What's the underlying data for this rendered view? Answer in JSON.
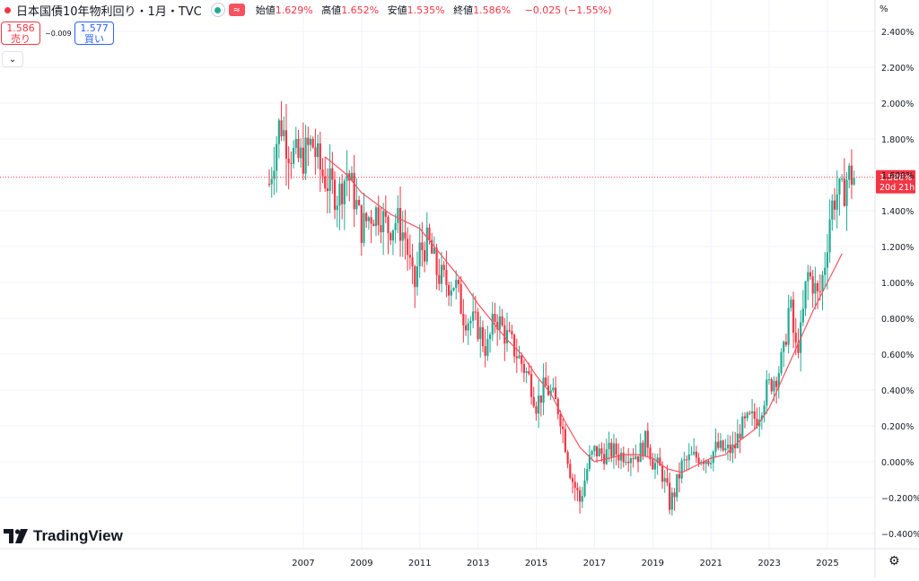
{
  "header": {
    "symbol": "日本国債10年物利回り・1月・TVC",
    "approx_icon": "≈",
    "open_label": "始値",
    "open": "1.629%",
    "high_label": "高値",
    "high": "1.652%",
    "low_label": "安値",
    "low": "1.535%",
    "close_label": "終値",
    "close": "1.586%",
    "change": "−0.025 (−1.55%)"
  },
  "trade": {
    "sell_price": "1.586",
    "sell_label": "売り",
    "spread": "−0.009",
    "buy_price": "1.577",
    "buy_label": "買い"
  },
  "axis": {
    "unit_label": "%",
    "price_tag": "1.586%",
    "countdown": "20d 21h"
  },
  "brand": {
    "name": "TradingView"
  },
  "colors": {
    "up": "#22ab94",
    "down": "#f23645",
    "ma": "#f7525f",
    "grid": "#f0f3fa"
  },
  "chart_data": {
    "type": "candlestick",
    "interval": "1M",
    "ylabel_unit": "%",
    "ylim": [
      -0.45,
      2.45
    ],
    "y_ticks": [
      "2.400%",
      "2.200%",
      "2.000%",
      "1.800%",
      "1.600%",
      "1.400%",
      "1.200%",
      "1.000%",
      "0.800%",
      "0.600%",
      "0.400%",
      "0.200%",
      "0.000%",
      "−0.200%",
      "−0.400%"
    ],
    "y_tick_values": [
      2.4,
      2.2,
      2.0,
      1.8,
      1.6,
      1.4,
      1.2,
      1.0,
      0.8,
      0.6,
      0.4,
      0.2,
      0.0,
      -0.2,
      -0.4
    ],
    "x_ticks": [
      "2007",
      "2009",
      "2011",
      "2013",
      "2015",
      "2017",
      "2019",
      "2021",
      "2023",
      "2025"
    ],
    "x_tick_years": [
      2007,
      2009,
      2011,
      2013,
      2015,
      2017,
      2019,
      2021,
      2023,
      2025
    ],
    "x_range": [
      2005.8,
      2025.95
    ],
    "last_price": 1.586,
    "moving_average": [
      [
        2007.75,
        1.7
      ],
      [
        2008.5,
        1.6
      ],
      [
        2009.0,
        1.5
      ],
      [
        2010.0,
        1.38
      ],
      [
        2011.0,
        1.3
      ],
      [
        2012.0,
        1.1
      ],
      [
        2012.5,
        1.0
      ],
      [
        2013.0,
        0.88
      ],
      [
        2014.0,
        0.68
      ],
      [
        2014.5,
        0.6
      ],
      [
        2015.0,
        0.48
      ],
      [
        2015.5,
        0.38
      ],
      [
        2016.0,
        0.22
      ],
      [
        2016.5,
        0.08
      ],
      [
        2017.0,
        0.0
      ],
      [
        2017.5,
        0.02
      ],
      [
        2018.0,
        0.04
      ],
      [
        2018.5,
        0.04
      ],
      [
        2019.0,
        0.02
      ],
      [
        2019.5,
        -0.04
      ],
      [
        2020.0,
        -0.06
      ],
      [
        2020.5,
        -0.02
      ],
      [
        2021.0,
        0.02
      ],
      [
        2021.5,
        0.04
      ],
      [
        2022.0,
        0.12
      ],
      [
        2022.5,
        0.18
      ],
      [
        2023.0,
        0.3
      ],
      [
        2023.5,
        0.48
      ],
      [
        2024.0,
        0.66
      ],
      [
        2024.5,
        0.84
      ],
      [
        2025.0,
        1.0
      ],
      [
        2025.5,
        1.16
      ]
    ],
    "close_path": [
      [
        2005.83,
        1.55
      ],
      [
        2006.0,
        1.72
      ],
      [
        2006.2,
        1.9
      ],
      [
        2006.5,
        1.75
      ],
      [
        2006.8,
        1.68
      ],
      [
        2007.0,
        1.7
      ],
      [
        2007.3,
        1.78
      ],
      [
        2007.6,
        1.62
      ],
      [
        2007.9,
        1.54
      ],
      [
        2008.2,
        1.48
      ],
      [
        2008.5,
        1.62
      ],
      [
        2008.8,
        1.45
      ],
      [
        2009.0,
        1.3
      ],
      [
        2009.3,
        1.38
      ],
      [
        2009.6,
        1.4
      ],
      [
        2009.9,
        1.3
      ],
      [
        2010.2,
        1.35
      ],
      [
        2010.5,
        1.25
      ],
      [
        2010.8,
        0.95
      ],
      [
        2011.0,
        1.18
      ],
      [
        2011.3,
        1.22
      ],
      [
        2011.6,
        1.05
      ],
      [
        2011.9,
        1.0
      ],
      [
        2012.2,
        1.0
      ],
      [
        2012.5,
        0.82
      ],
      [
        2012.8,
        0.78
      ],
      [
        2013.0,
        0.75
      ],
      [
        2013.3,
        0.62
      ],
      [
        2013.6,
        0.82
      ],
      [
        2013.9,
        0.72
      ],
      [
        2014.2,
        0.64
      ],
      [
        2014.5,
        0.55
      ],
      [
        2014.8,
        0.45
      ],
      [
        2015.0,
        0.32
      ],
      [
        2015.3,
        0.42
      ],
      [
        2015.5,
        0.38
      ],
      [
        2015.8,
        0.28
      ],
      [
        2016.0,
        0.1
      ],
      [
        2016.2,
        -0.08
      ],
      [
        2016.5,
        -0.22
      ],
      [
        2016.8,
        0.0
      ],
      [
        2017.0,
        0.06
      ],
      [
        2017.3,
        0.04
      ],
      [
        2017.6,
        0.06
      ],
      [
        2017.9,
        0.04
      ],
      [
        2018.2,
        0.05
      ],
      [
        2018.5,
        0.04
      ],
      [
        2018.8,
        0.13
      ],
      [
        2019.0,
        0.0
      ],
      [
        2019.3,
        -0.05
      ],
      [
        2019.6,
        -0.24
      ],
      [
        2019.8,
        -0.14
      ],
      [
        2020.0,
        -0.02
      ],
      [
        2020.3,
        0.02
      ],
      [
        2020.6,
        0.03
      ],
      [
        2020.9,
        0.02
      ],
      [
        2021.2,
        0.08
      ],
      [
        2021.5,
        0.06
      ],
      [
        2021.8,
        0.07
      ],
      [
        2022.0,
        0.18
      ],
      [
        2022.3,
        0.23
      ],
      [
        2022.6,
        0.25
      ],
      [
        2022.9,
        0.4
      ],
      [
        2023.1,
        0.45
      ],
      [
        2023.3,
        0.5
      ],
      [
        2023.5,
        0.6
      ],
      [
        2023.7,
        0.9
      ],
      [
        2023.9,
        0.62
      ],
      [
        2024.1,
        0.72
      ],
      [
        2024.3,
        1.05
      ],
      [
        2024.5,
        1.0
      ],
      [
        2024.7,
        0.9
      ],
      [
        2024.9,
        1.1
      ],
      [
        2025.1,
        1.4
      ],
      [
        2025.3,
        1.5
      ],
      [
        2025.5,
        1.48
      ],
      [
        2025.7,
        1.6
      ],
      [
        2025.9,
        1.586
      ]
    ]
  }
}
